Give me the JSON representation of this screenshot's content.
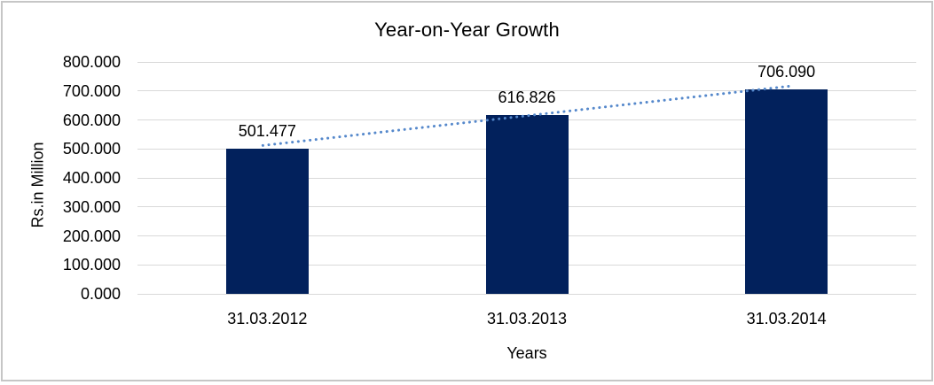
{
  "frame": {
    "border_color": "#c6c6c6",
    "background_color": "#ffffff"
  },
  "chart_data": {
    "type": "bar",
    "title": "Year-on-Year Growth",
    "xlabel": "Years",
    "ylabel": "Rs.in Million",
    "categories": [
      "31.03.2012",
      "31.03.2013",
      "31.03.2014"
    ],
    "values": [
      501.477,
      616.826,
      706.09
    ],
    "value_labels": [
      "501.477",
      "616.826",
      "706.090"
    ],
    "ylim": [
      0,
      800
    ],
    "ytick_step": 100,
    "ytick_labels": [
      "0.000",
      "100.000",
      "200.000",
      "300.000",
      "400.000",
      "500.000",
      "600.000",
      "700.000",
      "800.000"
    ],
    "grid": true,
    "legend": "none",
    "bar_color": "#02215c",
    "gridline_color": "#d9d9d9",
    "text_color": "#000000",
    "trendline": {
      "type": "linear",
      "style": "dotted",
      "color": "#5588cb"
    }
  }
}
